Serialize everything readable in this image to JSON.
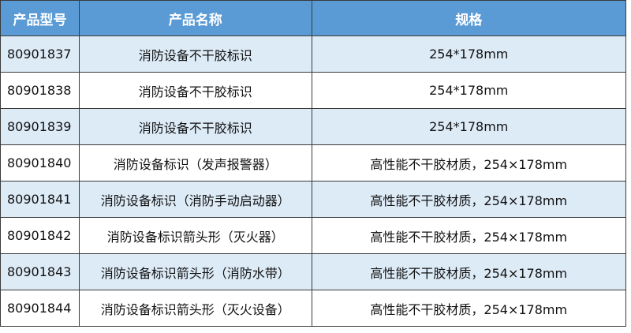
{
  "headers": [
    "产品型号",
    "产品名称",
    "规格"
  ],
  "rows": [
    {
      "model": "80901837",
      "name": "消防设备不干胶标识",
      "spec": "254*178mm"
    },
    {
      "model": "80901838",
      "name": "消防设备不干胶标识",
      "spec": "254*178mm"
    },
    {
      "model": "80901839",
      "name": "消防设备不干胶标识",
      "spec": "254*178mm"
    },
    {
      "model": "80901840",
      "name": "消防设备标识（发声报警器）",
      "spec": "高性能不干胶材质，254×178mm"
    },
    {
      "model": "80901841",
      "name": "消防设备标识（消防手动启动器）",
      "spec": "高性能不干胶材质，254×178mm"
    },
    {
      "model": "80901842",
      "name": "消防设备标识箭头形（灭火器）",
      "spec": "高性能不干胶材质，254×178mm"
    },
    {
      "model": "80901843",
      "name": "消防设备标识箭头形（消防水带）",
      "spec": "高性能不干胶材质，254×178mm"
    },
    {
      "model": "80901844",
      "name": "消防设备标识箭头形（灭火设备）",
      "spec": "高性能不干胶材质，254×178mm"
    }
  ],
  "colors": {
    "header_bg": "#5b9bd5",
    "alt_row_bg": "#ddebf7",
    "border": "#3a3a3a"
  }
}
